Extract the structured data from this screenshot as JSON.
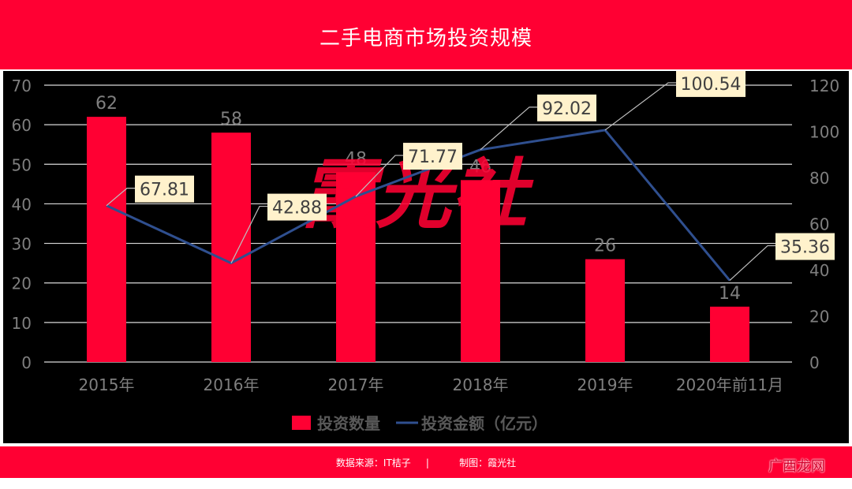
{
  "header": {
    "title": "二手电商市场投资规模"
  },
  "footer": {
    "source": "数据来源：IT桔子",
    "divider": "|",
    "credit": "制图：霞光社"
  },
  "watermark": "广西龙网",
  "logo_text": "霞光社",
  "colors": {
    "bar": "#ff0033",
    "line": "#2f4f8f",
    "background": "#000000",
    "header": "#ff0033",
    "callout": "#fff2cc"
  },
  "chart_data": {
    "type": "bar",
    "title": "二手电商市场投资规模",
    "categories": [
      "2015年",
      "2016年",
      "2017年",
      "2018年",
      "2019年",
      "2020年前11月"
    ],
    "series": [
      {
        "name": "投资数量",
        "type": "bar",
        "axis": "left",
        "values": [
          62,
          58,
          48,
          46,
          26,
          14
        ]
      },
      {
        "name": "投资金额（亿元）",
        "type": "line",
        "axis": "right",
        "values": [
          67.81,
          42.88,
          71.77,
          92.02,
          100.54,
          35.36
        ]
      }
    ],
    "y_left": {
      "ticks": [
        0,
        10,
        20,
        30,
        40,
        50,
        60,
        70
      ],
      "ylim": [
        0,
        70
      ]
    },
    "y_right": {
      "ticks": [
        0,
        20,
        40,
        60,
        80,
        100,
        120
      ],
      "ylim": [
        0,
        120
      ]
    },
    "grid": true,
    "legend_position": "bottom"
  }
}
